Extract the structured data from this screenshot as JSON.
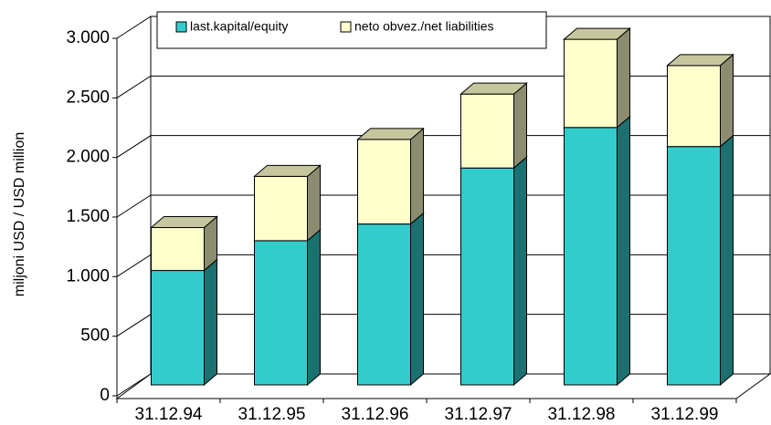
{
  "chart_data": {
    "type": "bar3d-stacked",
    "y_label": "miljoni USD / USD million",
    "categories": [
      "31.12.94",
      "31.12.95",
      "31.12.96",
      "31.12.97",
      "31.12.98",
      "31.12.99"
    ],
    "series": [
      {
        "name": "last.kapital/equity",
        "color": "#33cccc",
        "values": [
          960,
          1210,
          1350,
          1820,
          2160,
          2000
        ]
      },
      {
        "name": "neto obvez./net liabilities",
        "color": "#ffffcc",
        "values": [
          360,
          540,
          710,
          620,
          740,
          680
        ]
      }
    ],
    "ylim": [
      0,
      3000
    ],
    "yticks": [
      0,
      500,
      {
        "value": 1000,
        "label": "1.000"
      },
      {
        "value": 1500,
        "label": "1.500"
      },
      {
        "value": 2000,
        "label": "2.000"
      },
      {
        "value": 2500,
        "label": "2.500"
      },
      {
        "value": 3000,
        "label": "3.000"
      }
    ],
    "grid": true
  }
}
